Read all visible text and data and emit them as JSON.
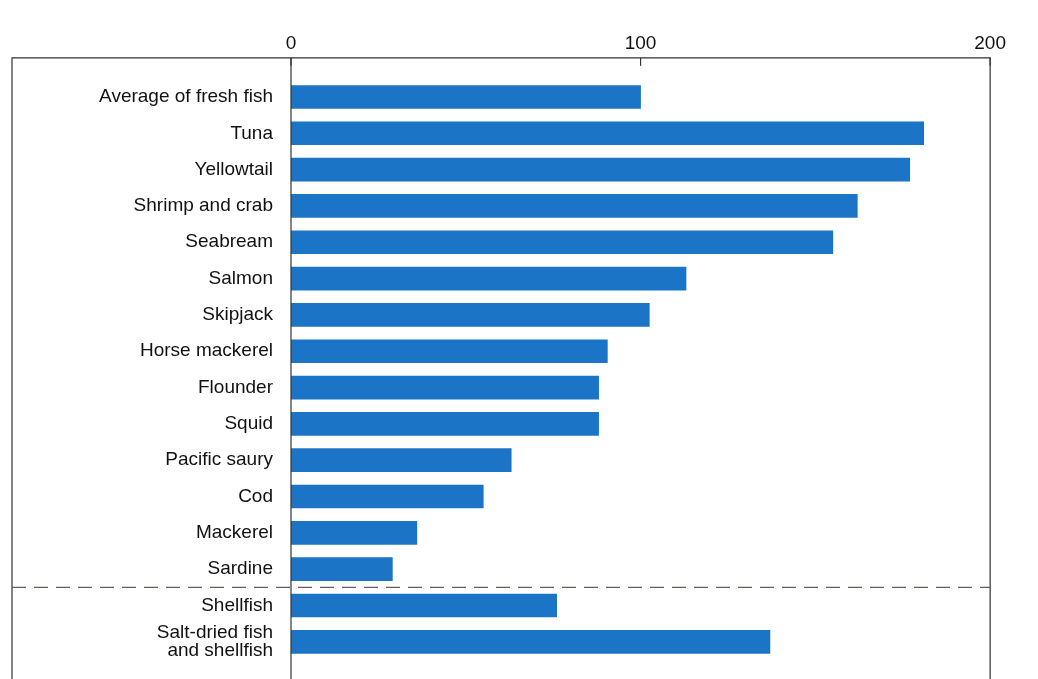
{
  "chart_data": {
    "type": "bar",
    "orientation": "horizontal",
    "categories": [
      "Average of fresh fish",
      "Tuna",
      "Yellowtail",
      "Shrimp and crab",
      "Seabream",
      "Salmon",
      "Skipjack",
      "Horse mackerel",
      "Flounder",
      "Squid",
      "Pacific saury",
      "Cod",
      "Mackerel",
      "Sardine",
      "Shellfish",
      "Salt-dried fish\nand shellfish"
    ],
    "values": [
      100,
      181,
      177,
      162,
      155,
      113,
      102.5,
      90.5,
      88,
      88,
      63,
      55,
      36,
      29,
      76,
      137
    ],
    "color": "#1b74c5",
    "xlim": [
      0,
      200
    ],
    "xticks": [
      0,
      100,
      200
    ]
  }
}
